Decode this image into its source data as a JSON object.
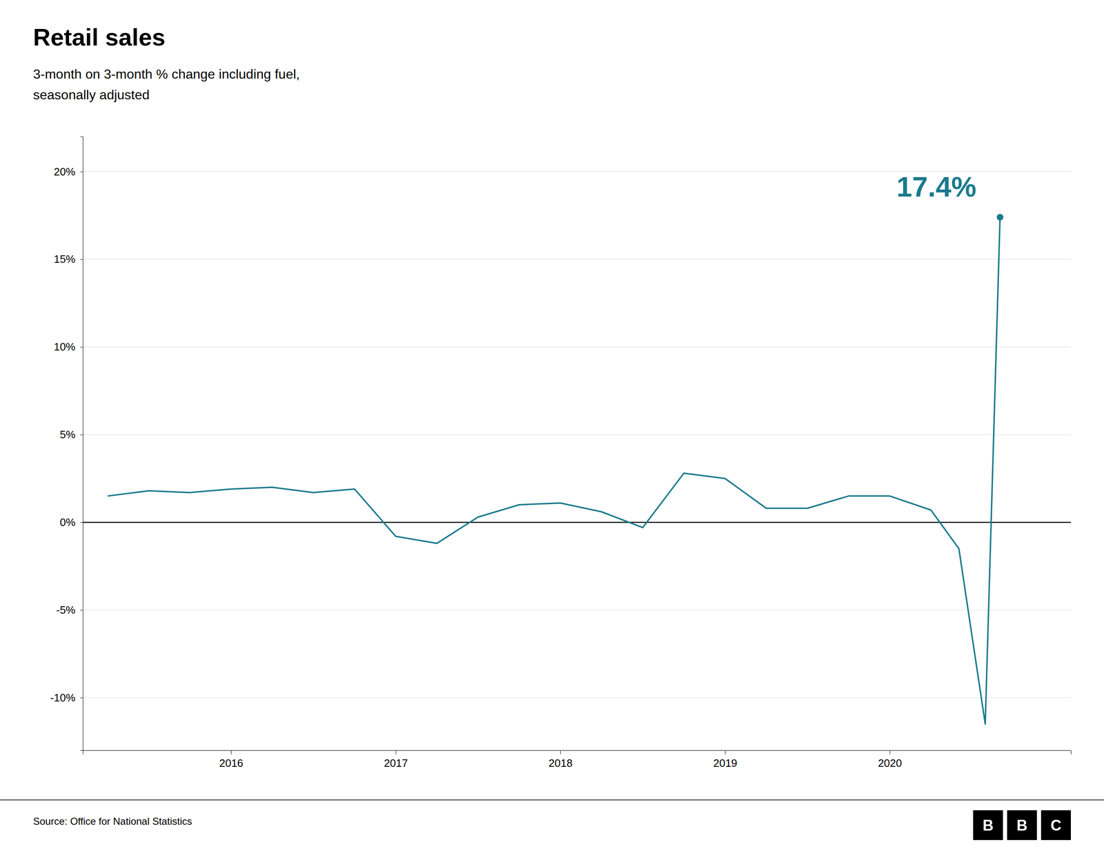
{
  "chart_data": {
    "type": "line",
    "title": "Retail sales",
    "subtitle": "3-month on 3-month % change including fuel,\nseasonally adjusted",
    "source": "Source: Office for National Statistics",
    "logo": [
      "B",
      "B",
      "C"
    ],
    "annotation": "17.4%",
    "x": [
      2015.25,
      2015.5,
      2015.75,
      2016.0,
      2016.25,
      2016.5,
      2016.75,
      2017.0,
      2017.25,
      2017.5,
      2017.75,
      2018.0,
      2018.25,
      2018.5,
      2018.75,
      2019.0,
      2019.25,
      2019.5,
      2019.75,
      2020.0,
      2020.25,
      2020.42,
      2020.58,
      2020.67
    ],
    "values": [
      1.5,
      1.8,
      1.7,
      1.9,
      2.0,
      1.7,
      1.9,
      -0.8,
      -1.2,
      0.3,
      1.0,
      1.1,
      0.6,
      -0.3,
      2.8,
      2.5,
      0.8,
      0.8,
      1.5,
      1.5,
      0.7,
      -1.5,
      -11.5,
      17.4
    ],
    "color": "#1a7a8c",
    "xlim": [
      2015.1,
      2021.1
    ],
    "xticks": [
      2016,
      2017,
      2018,
      2019,
      2020
    ],
    "ylim": [
      -13,
      22
    ],
    "yticks": [
      {
        "value": -10,
        "label": "-10%"
      },
      {
        "value": -5,
        "label": "-5%"
      },
      {
        "value": 0,
        "label": "0%"
      },
      {
        "value": 5,
        "label": "5%"
      },
      {
        "value": 10,
        "label": "10%"
      },
      {
        "value": 15,
        "label": "15%"
      },
      {
        "value": 20,
        "label": "20%"
      }
    ],
    "grid": true
  }
}
